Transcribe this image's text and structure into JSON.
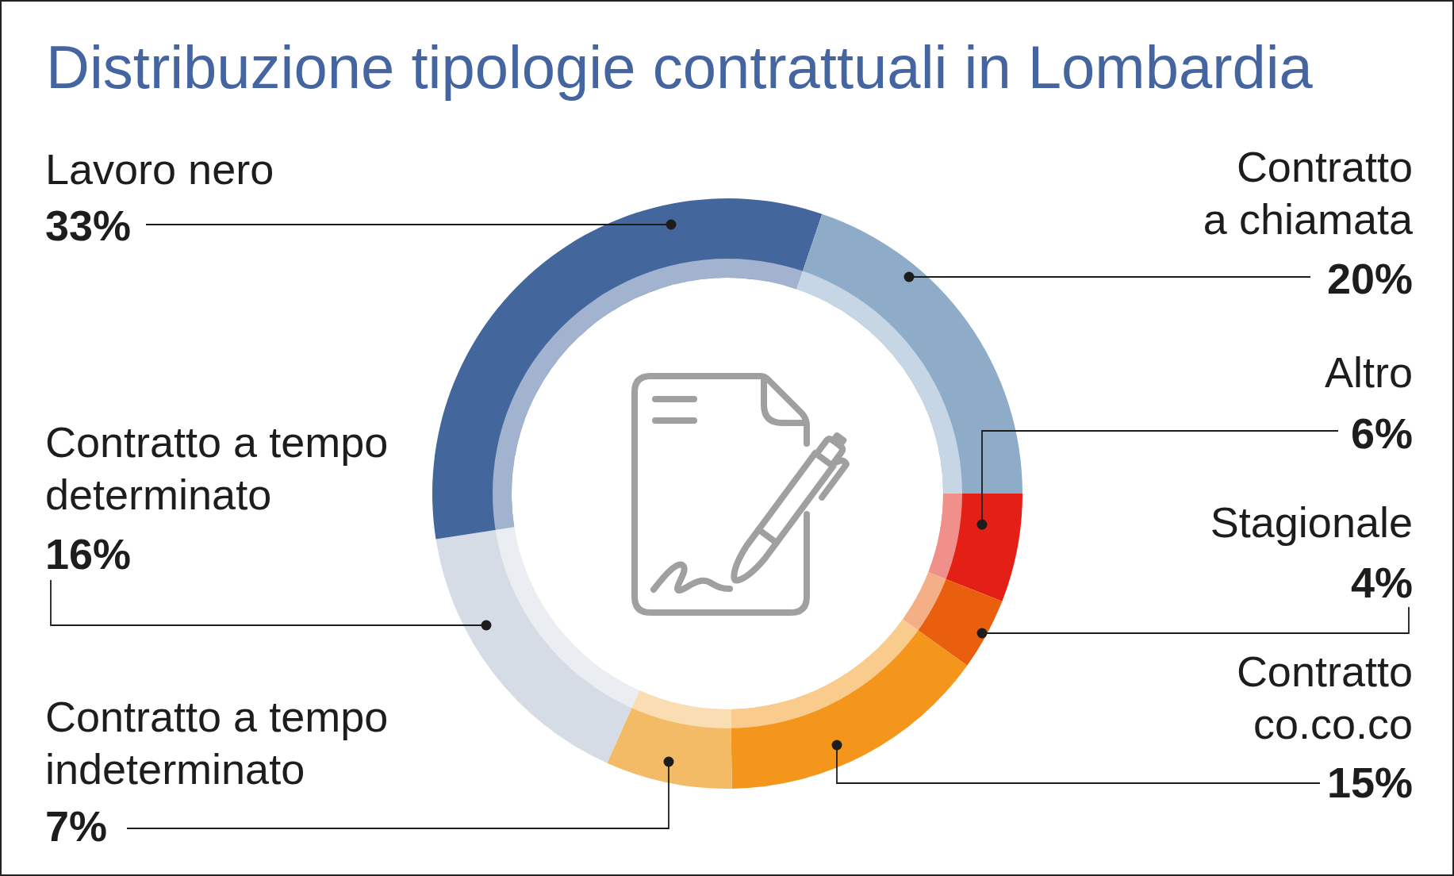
{
  "chart_data": {
    "type": "donut",
    "title": "Distribuzione tipologie contrattuali in Lombardia",
    "categories": [
      "Altro",
      "Stagionale",
      "Contratto co.co.co",
      "Contratto a tempo indeterminato",
      "Contratto a tempo determinato",
      "Lavoro nero",
      "Contratto a chiamata"
    ],
    "values": [
      6,
      4,
      15,
      7,
      16,
      33,
      20
    ],
    "colors": [
      "#e31f16",
      "#ea5f0e",
      "#f3961b",
      "#f4bb66",
      "#d5dce5",
      "#43669d",
      "#8eacc8"
    ],
    "value_labels": [
      "6%",
      "4%",
      "15%",
      "7%",
      "16%",
      "33%",
      "20%"
    ]
  }
}
